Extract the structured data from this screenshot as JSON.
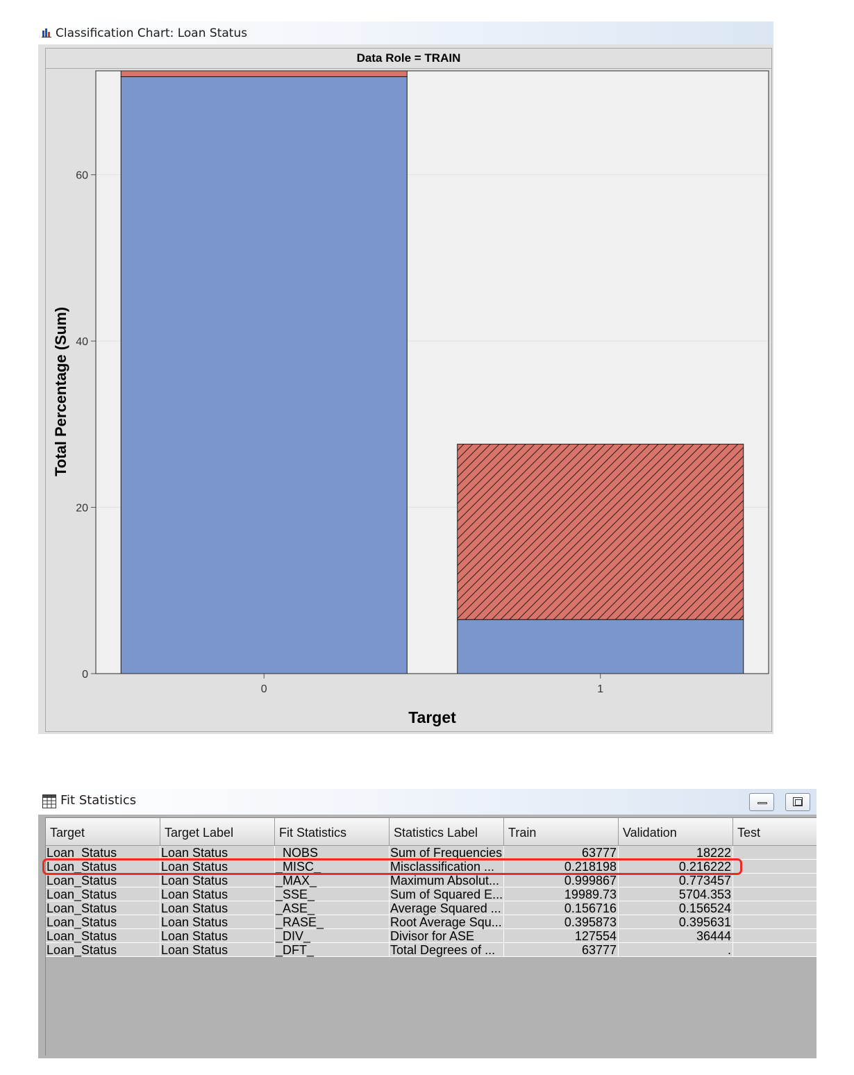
{
  "chart_window": {
    "title": "Classification Chart: Loan Status",
    "icon": "bar-chart-icon",
    "panel_header": "Data Role = TRAIN"
  },
  "chart_data": {
    "type": "bar",
    "stacked": true,
    "categories": [
      "0",
      "1"
    ],
    "series": [
      {
        "color": "#7b96cc",
        "values": [
          71.8,
          6.5
        ]
      },
      {
        "color": "#d9746a",
        "pattern": "diagonal-hatch-on-second-bar",
        "values": [
          0.7,
          21.1
        ]
      }
    ],
    "xlabel": "Target",
    "ylabel": "Total Percentage (Sum)",
    "ylim": [
      0,
      72.5
    ],
    "yticks": [
      "0",
      "20",
      "40",
      "60"
    ],
    "ytick_values": [
      0,
      20,
      40,
      60
    ],
    "grid": "horizontal"
  },
  "stats_window": {
    "title": "Fit Statistics",
    "icon": "table-icon",
    "buttons": {
      "minimize": "minimize-icon",
      "maximize": "maximize-icon"
    },
    "columns": [
      "Target",
      "Target Label",
      "Fit Statistics",
      "Statistics Label",
      "Train",
      "Validation",
      "Test"
    ],
    "rows": [
      [
        "Loan_Status",
        "Loan Status",
        "_NOBS_",
        "Sum of Frequencies",
        "63777",
        "18222",
        ""
      ],
      [
        "Loan_Status",
        "Loan Status",
        "_MISC_",
        "Misclassification ...",
        "0.218198",
        "0.216222",
        ""
      ],
      [
        "Loan_Status",
        "Loan Status",
        "_MAX_",
        "Maximum Absolut...",
        "0.999867",
        "0.773457",
        ""
      ],
      [
        "Loan_Status",
        "Loan Status",
        "_SSE_",
        "Sum of Squared E...",
        "19989.73",
        "5704.353",
        ""
      ],
      [
        "Loan_Status",
        "Loan Status",
        "_ASE_",
        "Average Squared ...",
        "0.156716",
        "0.156524",
        ""
      ],
      [
        "Loan_Status",
        "Loan Status",
        "_RASE_",
        "Root Average Squ...",
        "0.395873",
        "0.395631",
        ""
      ],
      [
        "Loan_Status",
        "Loan Status",
        "_DIV_",
        "Divisor for ASE",
        "127554",
        "36444",
        ""
      ],
      [
        "Loan_Status",
        "Loan Status",
        "_DFT_",
        "Total Degrees of ...",
        "63777",
        ".",
        ""
      ]
    ],
    "highlighted_row": 1,
    "highlight_color": "#ee2a24"
  }
}
